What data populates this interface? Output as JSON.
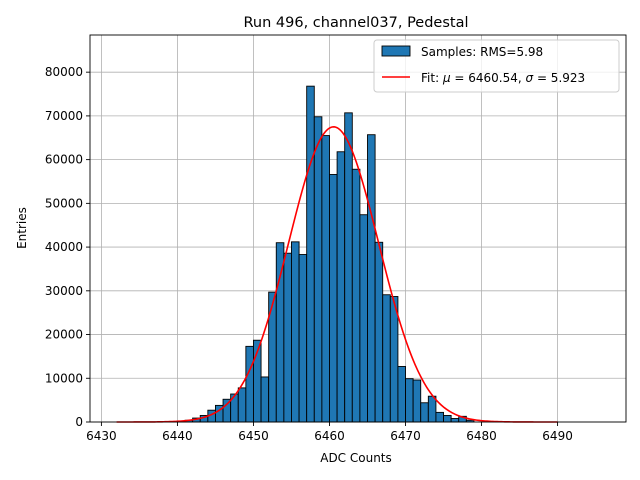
{
  "chart_data": {
    "type": "bar",
    "title": "Run 496, channel037, Pedestal",
    "xlabel": "ADC Counts",
    "ylabel": "Entries",
    "xlim": [
      6428.5,
      6499
    ],
    "ylim": [
      0,
      88500
    ],
    "grid": true,
    "xticks": [
      6430,
      6440,
      6450,
      6460,
      6470,
      6480,
      6490
    ],
    "yticks": [
      0,
      10000,
      20000,
      30000,
      40000,
      50000,
      60000,
      70000,
      80000
    ],
    "bin_width": 1,
    "bar_color": "#1f77b4",
    "fit_color": "#ff0000",
    "series": [
      {
        "name": "Samples: RMS=5.98",
        "kind": "histogram",
        "bins": [
          {
            "x": 6439,
            "value": 100
          },
          {
            "x": 6440,
            "value": 200
          },
          {
            "x": 6441,
            "value": 400
          },
          {
            "x": 6442,
            "value": 900
          },
          {
            "x": 6443,
            "value": 1500
          },
          {
            "x": 6444,
            "value": 2700
          },
          {
            "x": 6445,
            "value": 3800
          },
          {
            "x": 6446,
            "value": 5200
          },
          {
            "x": 6447,
            "value": 6400
          },
          {
            "x": 6448,
            "value": 7800
          },
          {
            "x": 6449,
            "value": 17300
          },
          {
            "x": 6450,
            "value": 18700
          },
          {
            "x": 6451,
            "value": 10300
          },
          {
            "x": 6452,
            "value": 29700
          },
          {
            "x": 6453,
            "value": 41000
          },
          {
            "x": 6454,
            "value": 38600
          },
          {
            "x": 6455,
            "value": 41200
          },
          {
            "x": 6456,
            "value": 38300
          },
          {
            "x": 6457,
            "value": 76800
          },
          {
            "x": 6458,
            "value": 69800
          },
          {
            "x": 6459,
            "value": 65500
          },
          {
            "x": 6460,
            "value": 56600
          },
          {
            "x": 6461,
            "value": 61800
          },
          {
            "x": 6462,
            "value": 70700
          },
          {
            "x": 6463,
            "value": 57800
          },
          {
            "x": 6464,
            "value": 47400
          },
          {
            "x": 6465,
            "value": 65700
          },
          {
            "x": 6466,
            "value": 41100
          },
          {
            "x": 6467,
            "value": 29100
          },
          {
            "x": 6468,
            "value": 28700
          },
          {
            "x": 6469,
            "value": 12700
          },
          {
            "x": 6470,
            "value": 9900
          },
          {
            "x": 6471,
            "value": 9600
          },
          {
            "x": 6472,
            "value": 4400
          },
          {
            "x": 6473,
            "value": 5900
          },
          {
            "x": 6474,
            "value": 2200
          },
          {
            "x": 6475,
            "value": 1500
          },
          {
            "x": 6476,
            "value": 800
          },
          {
            "x": 6477,
            "value": 1300
          },
          {
            "x": 6478,
            "value": 400
          }
        ]
      },
      {
        "name": "Fit: μ = 6460.54, σ = 5.923",
        "kind": "gaussian-fit",
        "mu": 6460.54,
        "sigma": 5.923,
        "amplitude": 67500,
        "x_range": [
          6432,
          6490
        ]
      }
    ],
    "legend": {
      "placement": "top-right",
      "entries": [
        {
          "label": "Samples: RMS=5.98",
          "kind": "patch"
        },
        {
          "label_prefix": "Fit: ",
          "mu_symbol": "μ",
          "mu_text": " = 6460.54, ",
          "sigma_symbol": "σ",
          "sigma_text": " = 5.923",
          "kind": "line"
        }
      ]
    }
  }
}
